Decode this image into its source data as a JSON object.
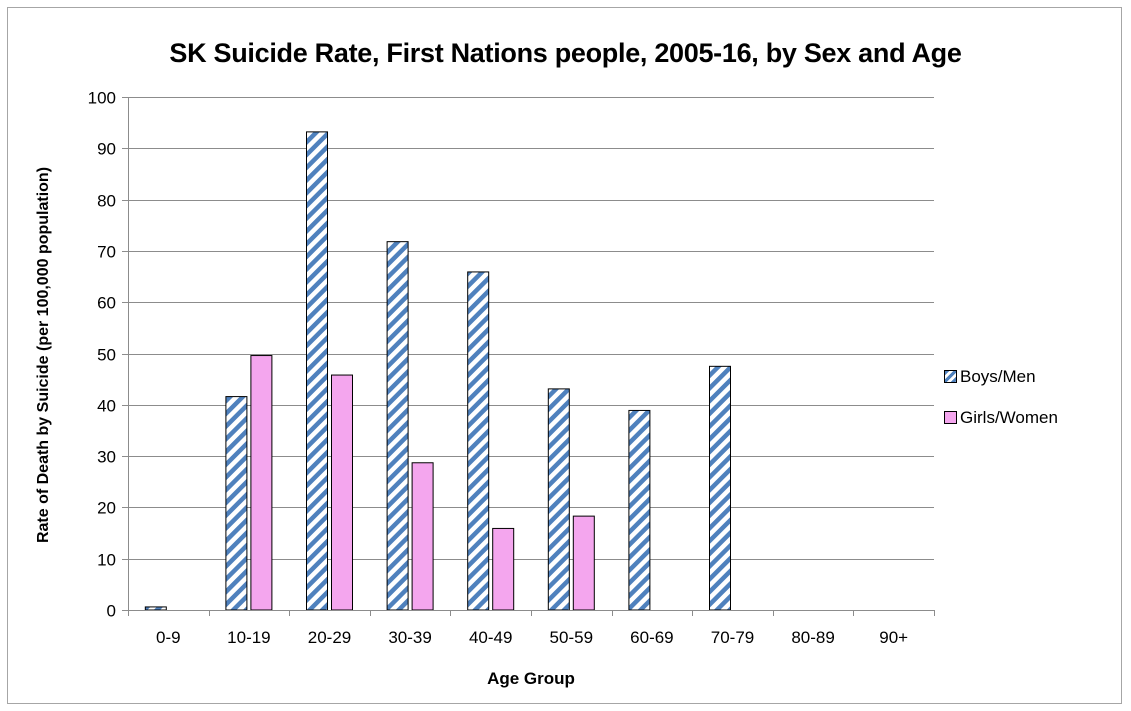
{
  "chart_data": {
    "type": "bar",
    "title": "SK Suicide Rate, First Nations people, 2005-16, by Sex and Age",
    "xlabel": "Age Group",
    "ylabel": "Rate of Death by Suicide  (per 100,000 population)",
    "categories": [
      "0-9",
      "10-19",
      "20-29",
      "30-39",
      "40-49",
      "50-59",
      "60-69",
      "70-79",
      "80-89",
      "90+"
    ],
    "y_ticks": [
      "0",
      "10",
      "20",
      "30",
      "40",
      "50",
      "60",
      "70",
      "80",
      "90",
      "100"
    ],
    "ylim": [
      0,
      100
    ],
    "grid": true,
    "legend_position": "right",
    "series": [
      {
        "name": "Boys/Men",
        "pattern": "diagonal-stripes",
        "color": "#4f81bd",
        "values": [
          0.6,
          41.6,
          93.2,
          71.8,
          65.9,
          43.1,
          38.9,
          47.5,
          0,
          0
        ]
      },
      {
        "name": "Girls/Women",
        "pattern": "solid",
        "color": "#f4a6ee",
        "values": [
          0,
          49.6,
          45.8,
          28.7,
          15.9,
          18.3,
          0,
          0,
          0,
          0
        ]
      }
    ]
  }
}
